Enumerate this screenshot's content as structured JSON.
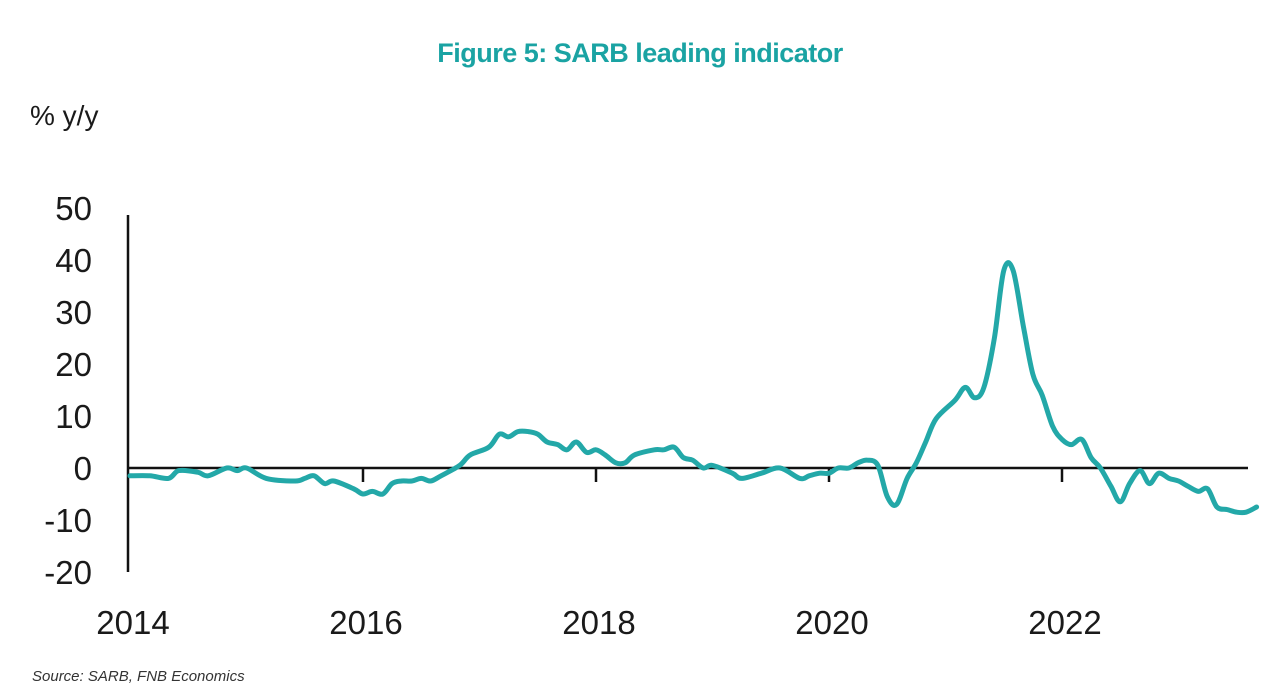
{
  "page": {
    "title": "Figure 5: SARB leading indicator",
    "source": "Source: SARB, FNB Economics"
  },
  "colors": {
    "title": "#1aa3a3",
    "series": "#23a8a8",
    "axis": "#111111"
  },
  "chart_data": {
    "type": "line",
    "title": "Figure 5: SARB leading indicator",
    "ylabel": "% y/y",
    "xlabel": "",
    "ylim": [
      -20,
      50
    ],
    "xlim": [
      2014,
      2023.8
    ],
    "y_ticks": [
      50,
      40,
      30,
      20,
      10,
      0,
      -10,
      -20
    ],
    "y_tick_labels": [
      "50",
      "40",
      "30",
      "20",
      "10",
      "0",
      "-10",
      "-20"
    ],
    "x_ticks": [
      2014,
      2016,
      2018,
      2020,
      2022
    ],
    "x_tick_labels": [
      "2014",
      "2016",
      "2018",
      "2020",
      "2022"
    ],
    "grid": false,
    "legend": "none",
    "series": [
      {
        "color": "#23a8a8",
        "points": [
          [
            2014.0,
            -1.5
          ],
          [
            2014.17,
            -1.5
          ],
          [
            2014.33,
            -2.0
          ],
          [
            2014.42,
            -0.5
          ],
          [
            2014.58,
            -0.8
          ],
          [
            2014.67,
            -1.5
          ],
          [
            2014.83,
            0.0
          ],
          [
            2014.92,
            -0.5
          ],
          [
            2015.0,
            0.0
          ],
          [
            2015.17,
            -2.0
          ],
          [
            2015.42,
            -2.5
          ],
          [
            2015.5,
            -2.0
          ],
          [
            2015.58,
            -1.5
          ],
          [
            2015.67,
            -3.0
          ],
          [
            2015.75,
            -2.5
          ],
          [
            2015.92,
            -4.0
          ],
          [
            2016.0,
            -5.0
          ],
          [
            2016.08,
            -4.5
          ],
          [
            2016.17,
            -5.0
          ],
          [
            2016.25,
            -3.0
          ],
          [
            2016.33,
            -2.5
          ],
          [
            2016.42,
            -2.5
          ],
          [
            2016.5,
            -2.0
          ],
          [
            2016.58,
            -2.5
          ],
          [
            2016.67,
            -1.5
          ],
          [
            2016.83,
            0.5
          ],
          [
            2016.92,
            2.5
          ],
          [
            2017.08,
            4.0
          ],
          [
            2017.17,
            6.5
          ],
          [
            2017.25,
            6.0
          ],
          [
            2017.33,
            7.0
          ],
          [
            2017.42,
            7.0
          ],
          [
            2017.5,
            6.5
          ],
          [
            2017.58,
            5.0
          ],
          [
            2017.67,
            4.5
          ],
          [
            2017.75,
            3.5
          ],
          [
            2017.83,
            5.0
          ],
          [
            2017.92,
            3.0
          ],
          [
            2018.0,
            3.5
          ],
          [
            2018.08,
            2.5
          ],
          [
            2018.17,
            1.0
          ],
          [
            2018.25,
            1.0
          ],
          [
            2018.33,
            2.5
          ],
          [
            2018.5,
            3.5
          ],
          [
            2018.58,
            3.5
          ],
          [
            2018.67,
            4.0
          ],
          [
            2018.75,
            2.0
          ],
          [
            2018.83,
            1.5
          ],
          [
            2018.92,
            0.0
          ],
          [
            2019.0,
            0.5
          ],
          [
            2019.17,
            -1.0
          ],
          [
            2019.25,
            -2.0
          ],
          [
            2019.42,
            -1.0
          ],
          [
            2019.58,
            0.0
          ],
          [
            2019.75,
            -2.0
          ],
          [
            2019.83,
            -1.5
          ],
          [
            2019.92,
            -1.0
          ],
          [
            2020.0,
            -1.0
          ],
          [
            2020.08,
            0.0
          ],
          [
            2020.17,
            0.0
          ],
          [
            2020.25,
            1.0
          ],
          [
            2020.33,
            1.5
          ],
          [
            2020.42,
            0.5
          ],
          [
            2020.5,
            -5.5
          ],
          [
            2020.58,
            -7.0
          ],
          [
            2020.67,
            -2.0
          ],
          [
            2020.75,
            1.0
          ],
          [
            2020.83,
            5.0
          ],
          [
            2020.92,
            9.5
          ],
          [
            2021.08,
            13.0
          ],
          [
            2021.17,
            15.5
          ],
          [
            2021.25,
            13.5
          ],
          [
            2021.33,
            15.5
          ],
          [
            2021.42,
            25.0
          ],
          [
            2021.5,
            38.0
          ],
          [
            2021.58,
            38.0
          ],
          [
            2021.67,
            27.0
          ],
          [
            2021.75,
            18.0
          ],
          [
            2021.83,
            14.0
          ],
          [
            2021.92,
            8.0
          ],
          [
            2022.0,
            5.5
          ],
          [
            2022.08,
            4.5
          ],
          [
            2022.17,
            5.5
          ],
          [
            2022.25,
            2.0
          ],
          [
            2022.33,
            0.0
          ],
          [
            2022.42,
            -3.5
          ],
          [
            2022.5,
            -6.5
          ],
          [
            2022.58,
            -3.0
          ],
          [
            2022.67,
            -0.5
          ],
          [
            2022.75,
            -3.0
          ],
          [
            2022.83,
            -1.0
          ],
          [
            2022.92,
            -2.0
          ],
          [
            2023.0,
            -2.5
          ],
          [
            2023.08,
            -3.5
          ],
          [
            2023.17,
            -4.5
          ],
          [
            2023.25,
            -4.0
          ],
          [
            2023.33,
            -7.5
          ],
          [
            2023.42,
            -8.0
          ],
          [
            2023.5,
            -8.5
          ],
          [
            2023.58,
            -8.5
          ],
          [
            2023.67,
            -7.5
          ]
        ]
      }
    ]
  }
}
